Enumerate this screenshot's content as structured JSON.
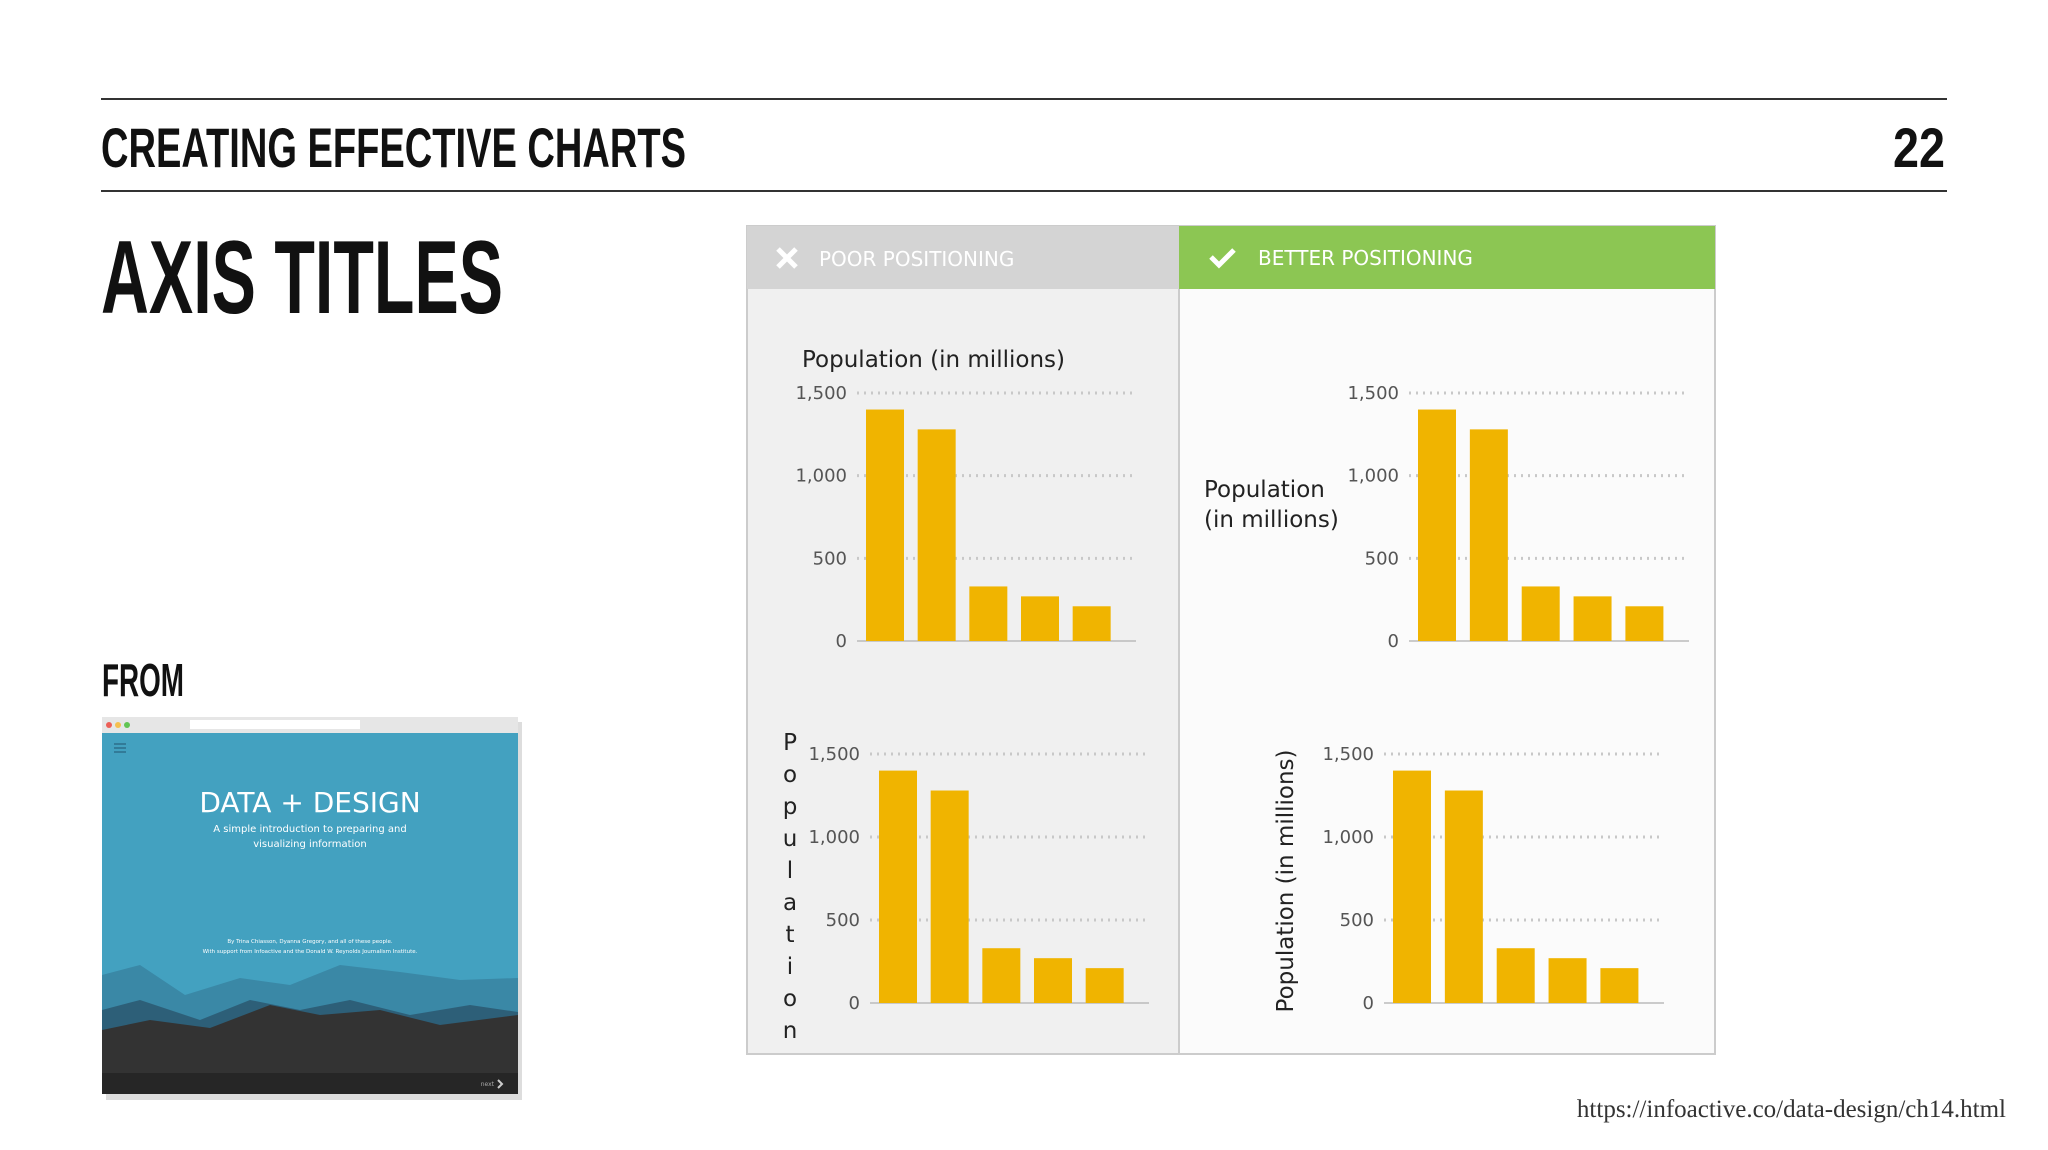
{
  "slide": {
    "section": "CREATING EFFECTIVE CHARTS",
    "page": "22",
    "title": "AXIS TITLES",
    "from": "FROM",
    "source": "https://infoactive.co/data-design/ch14.html"
  },
  "thumbnail": {
    "title": "DATA + DESIGN",
    "subtitle": [
      "A simple introduction to preparing and",
      "visualizing information"
    ],
    "credits": [
      "By Trina Chiasson, Dyanna Gregory, and all of these people.",
      "With support from Infoactive and the Donald W. Reynolds Journalism Institute."
    ],
    "next": "next"
  },
  "panels": [
    {
      "label": "POOR POSITIONING"
    },
    {
      "label": "BETTER POSITIONING"
    }
  ],
  "chart_data": [
    {
      "type": "bar",
      "ylabel": "Population (in millions)",
      "ylabel_position": "top",
      "categories": [
        null,
        null,
        null,
        null,
        null
      ],
      "values": [
        1400,
        1280,
        330,
        270,
        210
      ],
      "color": "#f0b400",
      "ylim": [
        0,
        1500
      ],
      "yticks": [
        0,
        500,
        {
          "value": 1000,
          "label": "1,000"
        },
        {
          "value": 1500,
          "label": "1,500"
        }
      ],
      "grid": true
    },
    {
      "type": "bar",
      "ylabel": [
        "Population",
        "(in millions)"
      ],
      "ylabel_position": "left",
      "categories": [
        null,
        null,
        null,
        null,
        null
      ],
      "values": [
        1400,
        1280,
        330,
        270,
        210
      ],
      "color": "#f0b400",
      "ylim": [
        0,
        1500
      ],
      "yticks": [
        0,
        500,
        {
          "value": 1000,
          "label": "1,000"
        },
        {
          "value": 1500,
          "label": "1,500"
        }
      ],
      "grid": true
    },
    {
      "type": "bar",
      "ylabel": "Population",
      "ylabel_position": "left-stacked",
      "categories": [
        null,
        null,
        null,
        null,
        null
      ],
      "values": [
        1400,
        1280,
        330,
        270,
        210
      ],
      "color": "#f0b400",
      "ylim": [
        0,
        1500
      ],
      "yticks": [
        0,
        500,
        {
          "value": 1000,
          "label": "1,000"
        },
        {
          "value": 1500,
          "label": "1,500"
        }
      ],
      "grid": true
    },
    {
      "type": "bar",
      "ylabel": "Population (in millions)",
      "ylabel_position": "left-rotated",
      "categories": [
        null,
        null,
        null,
        null,
        null
      ],
      "values": [
        1400,
        1280,
        330,
        270,
        210
      ],
      "color": "#f0b400",
      "ylim": [
        0,
        1500
      ],
      "yticks": [
        0,
        500,
        {
          "value": 1000,
          "label": "1,000"
        },
        {
          "value": 1500,
          "label": "1,500"
        }
      ],
      "grid": true
    }
  ]
}
